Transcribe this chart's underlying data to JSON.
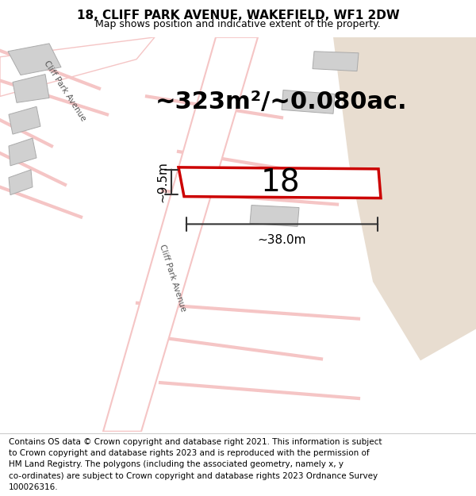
{
  "title": "18, CLIFF PARK AVENUE, WAKEFIELD, WF1 2DW",
  "subtitle": "Map shows position and indicative extent of the property.",
  "area_text": "~323m²/~0.080ac.",
  "plot_number": "18",
  "dim_width": "~38.0m",
  "dim_height": "~9.5m",
  "footer_lines": [
    "Contains OS data © Crown copyright and database right 2021. This information is subject",
    "to Crown copyright and database rights 2023 and is reproduced with the permission of",
    "HM Land Registry. The polygons (including the associated geometry, namely x, y",
    "co-ordinates) are subject to Crown copyright and database rights 2023 Ordnance Survey",
    "100026316."
  ],
  "bg_color": "#f0f0f0",
  "map_bg": "#ffffff",
  "road_color_light": "#f5c5c5",
  "plot_fill": "#ffffff",
  "plot_edge": "#cc0000",
  "plot_edge_width": 2.5,
  "building_fill": "#d0d0d0",
  "tan_area": "#e8ddd0",
  "title_fontsize": 11,
  "subtitle_fontsize": 9,
  "area_fontsize": 22,
  "plot_num_fontsize": 28,
  "dim_fontsize": 11,
  "footer_fontsize": 7.5,
  "road_label_fontsize": 7.5,
  "road_label_color": "#555555"
}
